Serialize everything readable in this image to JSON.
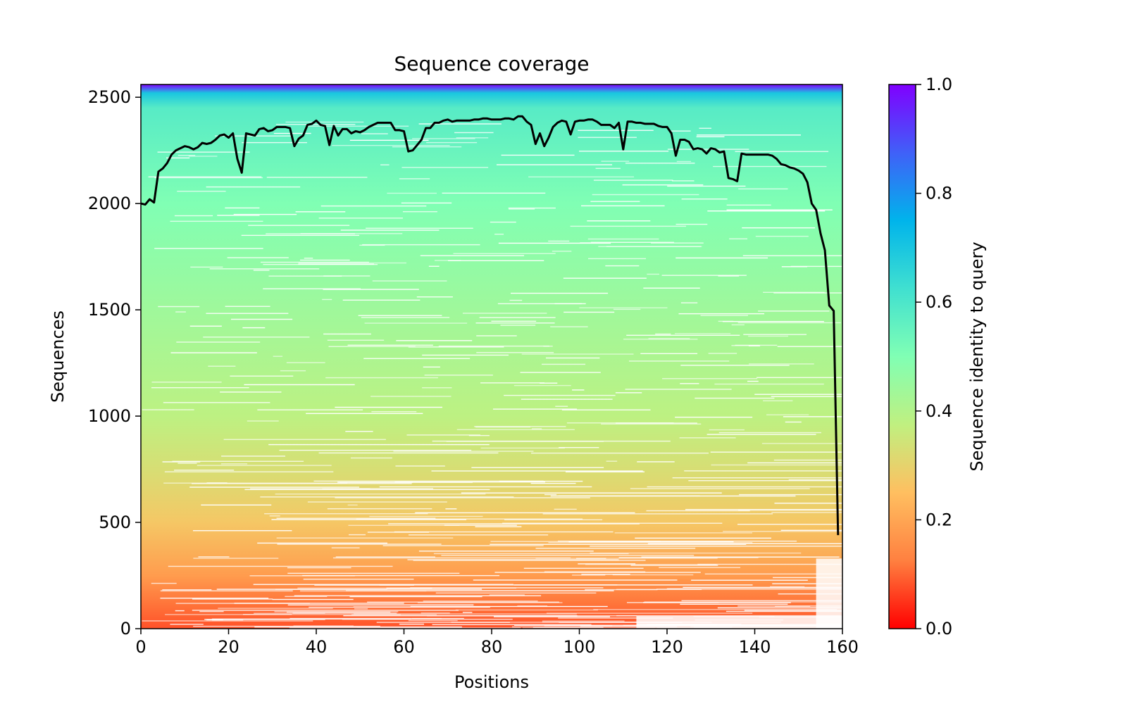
{
  "chart_data": {
    "type": "heatmap",
    "title": "Sequence coverage",
    "xlabel": "Positions",
    "ylabel": "Sequences",
    "xlim": [
      0,
      160
    ],
    "ylim": [
      0,
      2560
    ],
    "xticks": [
      0,
      20,
      40,
      60,
      80,
      100,
      120,
      140,
      160
    ],
    "yticks": [
      0,
      500,
      1000,
      1500,
      2000,
      2500
    ],
    "grid": false,
    "colorbar": {
      "label": "Sequence identity to query",
      "range": [
        0.0,
        1.0
      ],
      "ticks": [
        "0.0",
        "0.2",
        "0.4",
        "0.6",
        "0.8",
        "1.0"
      ],
      "colormap": "rainbow_r",
      "colors": [
        "#ff0000",
        "#ff8040",
        "#ffbf60",
        "#c0f080",
        "#80ffb4",
        "#40e0d0",
        "#00b4eb",
        "#4060f8",
        "#8000ff"
      ]
    },
    "heatmap_identity_by_sequence": {
      "sequences": [
        0,
        250,
        500,
        750,
        1000,
        1500,
        2000,
        2450,
        2520,
        2560
      ],
      "identity": [
        0.08,
        0.18,
        0.27,
        0.33,
        0.38,
        0.44,
        0.5,
        0.58,
        0.7,
        1.0
      ]
    },
    "line_color": "#000000",
    "series": [
      {
        "type": "line",
        "x": [
          0,
          1,
          2,
          3,
          4,
          5,
          6,
          7,
          8,
          9,
          10,
          11,
          12,
          13,
          14,
          15,
          16,
          17,
          18,
          19,
          20,
          21,
          22,
          23,
          24,
          25,
          26,
          27,
          28,
          29,
          30,
          31,
          32,
          33,
          34,
          35,
          36,
          37,
          38,
          39,
          40,
          41,
          42,
          43,
          44,
          45,
          46,
          47,
          48,
          49,
          50,
          51,
          52,
          53,
          54,
          55,
          56,
          57,
          58,
          59,
          60,
          61,
          62,
          63,
          64,
          65,
          66,
          67,
          68,
          69,
          70,
          71,
          72,
          73,
          74,
          75,
          76,
          77,
          78,
          79,
          80,
          81,
          82,
          83,
          84,
          85,
          86,
          87,
          88,
          89,
          90,
          91,
          92,
          93,
          94,
          95,
          96,
          97,
          98,
          99,
          100,
          101,
          102,
          103,
          104,
          105,
          106,
          107,
          108,
          109,
          110,
          111,
          112,
          113,
          114,
          115,
          116,
          117,
          118,
          119,
          120,
          121,
          122,
          123,
          124,
          125,
          126,
          127,
          128,
          129,
          130,
          131,
          132,
          133,
          134,
          135,
          136,
          137,
          138,
          139,
          140,
          141,
          142,
          143,
          144,
          145,
          146,
          147,
          148,
          149,
          150,
          151,
          152,
          153,
          154,
          155,
          156,
          157,
          158,
          159
        ],
        "y": [
          2000,
          1995,
          2020,
          2005,
          2150,
          2165,
          2190,
          2230,
          2250,
          2260,
          2270,
          2265,
          2255,
          2265,
          2285,
          2280,
          2285,
          2300,
          2320,
          2325,
          2310,
          2330,
          2210,
          2145,
          2330,
          2325,
          2320,
          2350,
          2355,
          2340,
          2345,
          2360,
          2360,
          2360,
          2355,
          2270,
          2305,
          2320,
          2370,
          2375,
          2390,
          2370,
          2365,
          2275,
          2365,
          2320,
          2350,
          2350,
          2330,
          2340,
          2335,
          2345,
          2360,
          2370,
          2380,
          2380,
          2380,
          2380,
          2345,
          2345,
          2340,
          2245,
          2250,
          2275,
          2300,
          2355,
          2355,
          2380,
          2380,
          2390,
          2395,
          2385,
          2390,
          2390,
          2390,
          2390,
          2395,
          2395,
          2400,
          2400,
          2395,
          2395,
          2395,
          2400,
          2400,
          2395,
          2410,
          2410,
          2385,
          2370,
          2280,
          2330,
          2270,
          2310,
          2360,
          2380,
          2390,
          2385,
          2325,
          2385,
          2390,
          2390,
          2395,
          2395,
          2385,
          2370,
          2370,
          2370,
          2355,
          2380,
          2255,
          2385,
          2385,
          2380,
          2380,
          2375,
          2375,
          2375,
          2365,
          2360,
          2360,
          2330,
          2225,
          2300,
          2300,
          2290,
          2255,
          2260,
          2255,
          2235,
          2260,
          2255,
          2240,
          2245,
          2120,
          2115,
          2105,
          2235,
          2230,
          2230,
          2230,
          2230,
          2230,
          2230,
          2225,
          2210,
          2185,
          2180,
          2170,
          2165,
          2155,
          2140,
          2100,
          2000,
          1970,
          1860,
          1780,
          1520,
          1495,
          440
        ]
      }
    ]
  }
}
